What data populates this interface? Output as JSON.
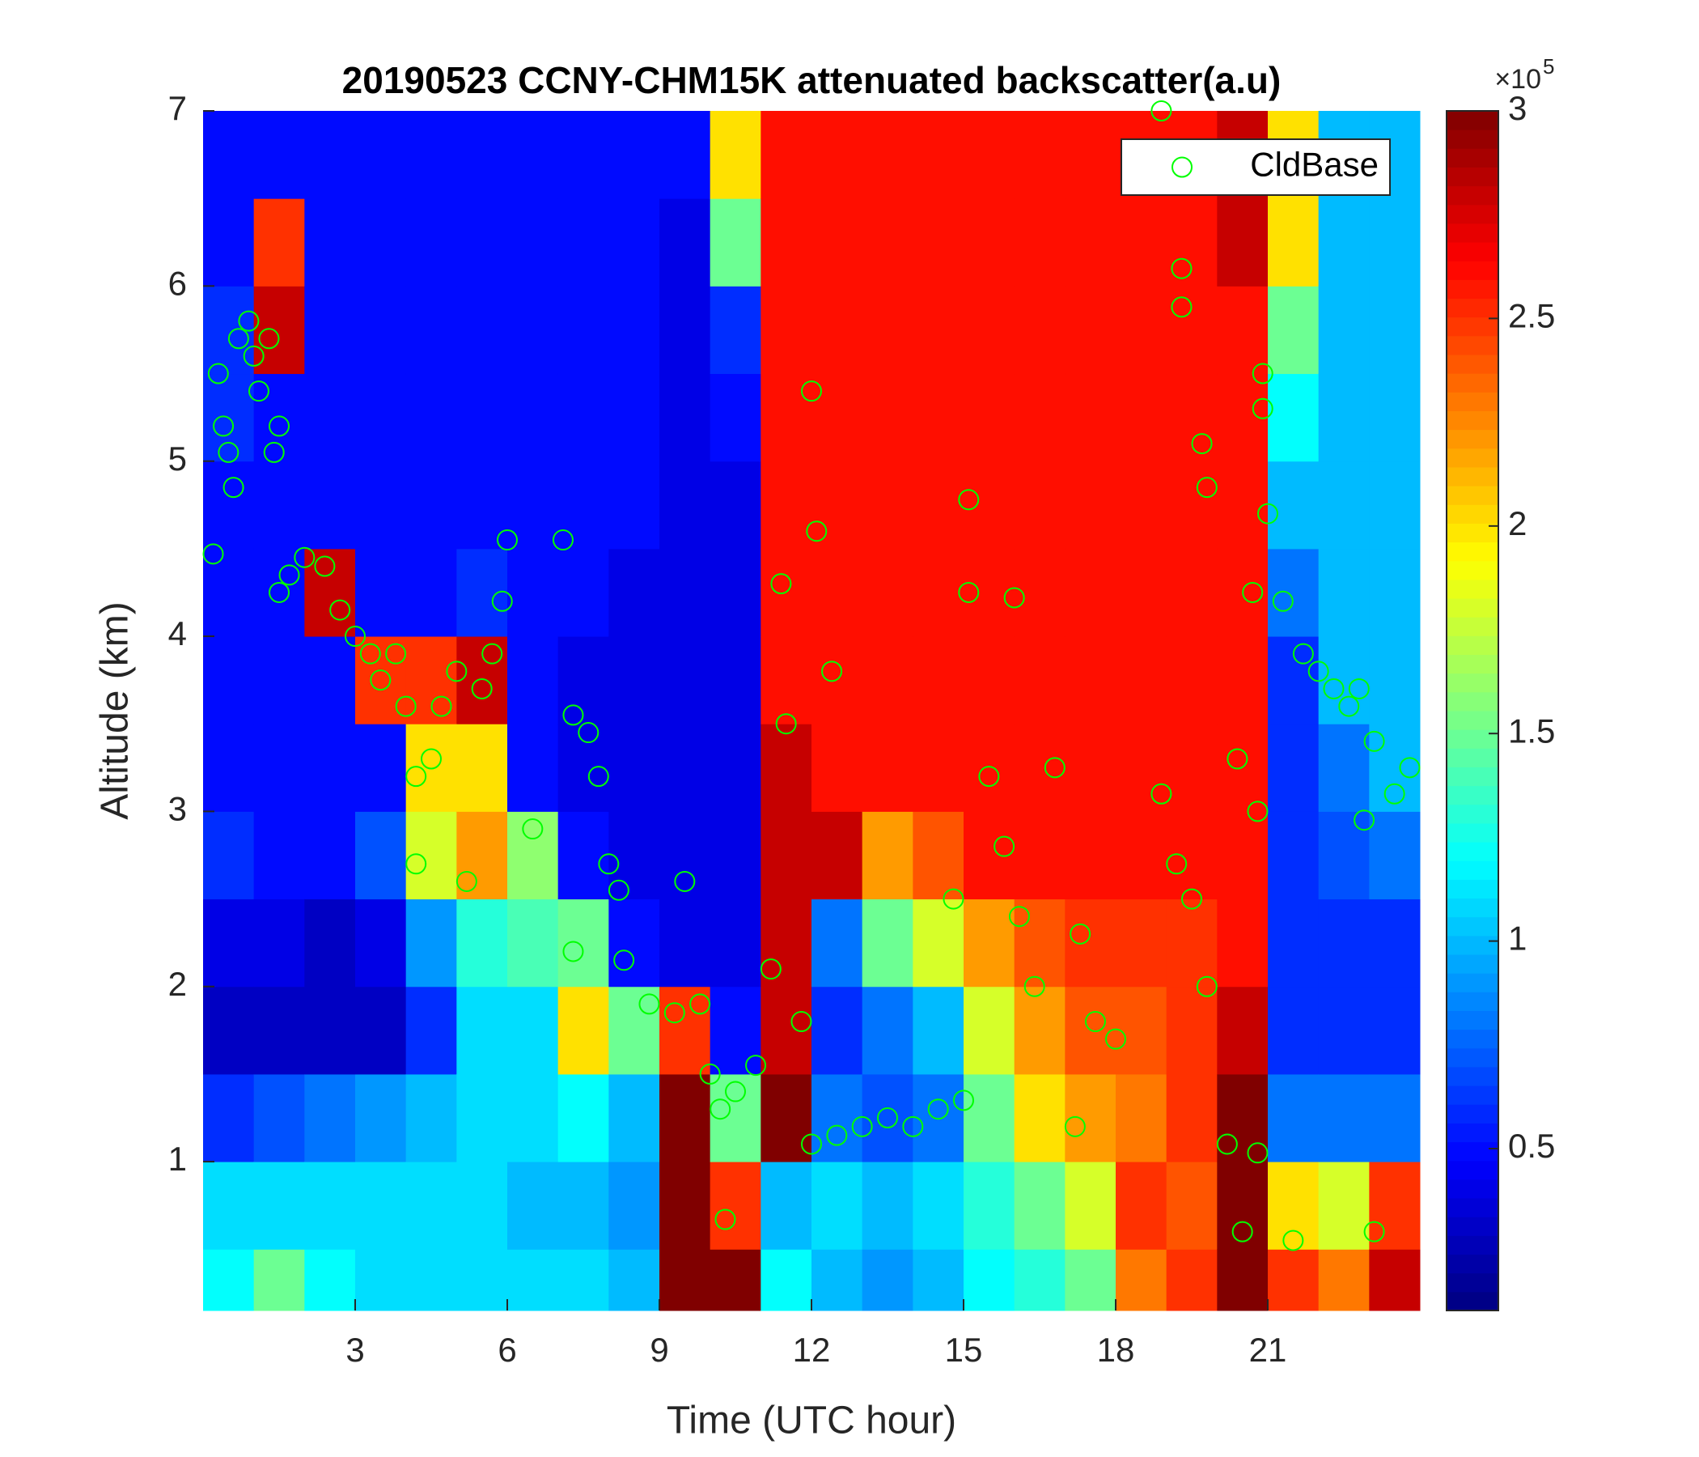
{
  "chart_data": [
    {
      "type": "heatmap",
      "title": "20190523 CCNY-CHM15K attenuated backscatter(a.u)",
      "xlabel": "Time (UTC hour)",
      "ylabel": "Altitude (km)",
      "xlim": [
        0,
        24
      ],
      "ylim": [
        0.15,
        7
      ],
      "xticks": [
        3,
        6,
        9,
        12,
        15,
        18,
        21
      ],
      "yticks": [
        1,
        2,
        3,
        4,
        5,
        6,
        7
      ],
      "colormap": "jet",
      "clim": [
        0.11,
        3
      ],
      "cticks": [
        0.5,
        1,
        1.5,
        2,
        2.5,
        3
      ],
      "colorbar_multiplier": "×10",
      "colorbar_exponent": "5",
      "xbins": [
        0,
        1,
        2,
        3,
        4,
        5,
        6,
        7,
        8,
        9,
        10,
        11,
        12,
        13,
        14,
        15,
        16,
        17,
        18,
        19,
        20,
        21,
        22,
        23,
        24
      ],
      "ybins": [
        0.15,
        0.5,
        1,
        1.5,
        2,
        2.5,
        3,
        3.5,
        4,
        4.5,
        5,
        5.5,
        6,
        6.5,
        7
      ],
      "z": [
        [
          1.2,
          1.1,
          0.6,
          0.3,
          0.4,
          0.6,
          0.5,
          0.5,
          0.5,
          0.5,
          0.6,
          0.6,
          0.5,
          0.5
        ],
        [
          1.5,
          1.1,
          0.7,
          0.3,
          0.4,
          0.5,
          0.5,
          0.5,
          0.5,
          0.5,
          0.5,
          2.8,
          2.5,
          0.5
        ],
        [
          1.2,
          1.1,
          0.8,
          0.3,
          0.3,
          0.5,
          0.5,
          0.5,
          2.8,
          0.5,
          0.5,
          0.5,
          0.5,
          0.5
        ],
        [
          1.1,
          1.1,
          0.9,
          0.3,
          0.4,
          0.7,
          0.5,
          2.5,
          0.5,
          0.5,
          0.5,
          0.5,
          0.5,
          0.5
        ],
        [
          1.1,
          1.1,
          1.0,
          0.6,
          0.9,
          1.8,
          2.0,
          2.5,
          0.5,
          0.5,
          0.5,
          0.5,
          0.5,
          0.5
        ],
        [
          1.1,
          1.1,
          1.1,
          1.1,
          1.3,
          2.2,
          2.0,
          2.8,
          0.6,
          0.5,
          0.5,
          0.5,
          0.5,
          0.5
        ],
        [
          1.1,
          1.0,
          1.1,
          1.1,
          1.4,
          1.6,
          0.5,
          0.5,
          0.5,
          0.5,
          0.5,
          0.5,
          0.5,
          0.5
        ],
        [
          1.1,
          1.0,
          1.2,
          2.0,
          1.5,
          0.5,
          0.4,
          0.4,
          0.5,
          0.5,
          0.5,
          0.5,
          0.5,
          0.5
        ],
        [
          1.0,
          0.9,
          1.0,
          1.5,
          0.5,
          0.4,
          0.4,
          0.4,
          0.4,
          0.5,
          0.5,
          0.5,
          0.5,
          0.5
        ],
        [
          3,
          3,
          3,
          2.5,
          0.4,
          0.4,
          0.4,
          0.4,
          0.4,
          0.4,
          0.4,
          0.4,
          0.4,
          0.5
        ],
        [
          3,
          2.5,
          1.5,
          0.5,
          0.4,
          0.4,
          0.4,
          0.4,
          0.4,
          0.4,
          0.5,
          0.6,
          1.5,
          2.0
        ],
        [
          1.2,
          1.0,
          3,
          2.8,
          2.8,
          2.8,
          2.8,
          2.6,
          2.6,
          2.6,
          2.6,
          2.6,
          2.6,
          2.6
        ],
        [
          1.0,
          1.1,
          0.8,
          0.6,
          0.8,
          2.8,
          2.6,
          2.6,
          2.6,
          2.6,
          2.6,
          2.6,
          2.6,
          2.6
        ],
        [
          0.9,
          1.0,
          0.7,
          0.8,
          1.5,
          2.2,
          2.6,
          2.6,
          2.6,
          2.6,
          2.6,
          2.6,
          2.6,
          2.6
        ],
        [
          1.0,
          1.1,
          0.8,
          1.0,
          1.8,
          2.4,
          2.6,
          2.6,
          2.6,
          2.6,
          2.6,
          2.6,
          2.6,
          2.6
        ],
        [
          1.2,
          1.3,
          1.5,
          1.8,
          2.2,
          2.6,
          2.6,
          2.6,
          2.6,
          2.6,
          2.6,
          2.6,
          2.6,
          2.6
        ],
        [
          1.3,
          1.5,
          2.0,
          2.2,
          2.4,
          2.6,
          2.6,
          2.6,
          2.6,
          2.6,
          2.6,
          2.6,
          2.6,
          2.6
        ],
        [
          1.5,
          1.8,
          2.2,
          2.4,
          2.5,
          2.6,
          2.6,
          2.6,
          2.6,
          2.6,
          2.6,
          2.6,
          2.6,
          2.6
        ],
        [
          2.3,
          2.5,
          2.3,
          2.4,
          2.5,
          2.6,
          2.6,
          2.6,
          2.6,
          2.6,
          2.6,
          2.6,
          2.6,
          2.6
        ],
        [
          2.5,
          2.4,
          2.5,
          2.5,
          2.5,
          2.6,
          2.6,
          2.6,
          2.6,
          2.6,
          2.6,
          2.6,
          2.6,
          2.6
        ],
        [
          3,
          3,
          3,
          2.8,
          2.6,
          2.6,
          2.6,
          2.6,
          2.6,
          2.6,
          2.6,
          2.6,
          2.8,
          2.8
        ],
        [
          2.5,
          2.0,
          0.8,
          0.6,
          0.6,
          0.6,
          0.6,
          0.6,
          0.8,
          1.0,
          1.2,
          1.5,
          2.0,
          2.0
        ],
        [
          2.3,
          1.8,
          0.8,
          0.6,
          0.6,
          0.7,
          0.8,
          1.0,
          1.0,
          1.0,
          1.0,
          1.0,
          1.0,
          1.0
        ],
        [
          2.8,
          2.5,
          0.8,
          0.6,
          0.6,
          0.8,
          1.0,
          1.0,
          1.0,
          1.0,
          1.0,
          1.0,
          1.0,
          1.0
        ]
      ]
    },
    {
      "type": "scatter",
      "xlim": [
        0,
        24
      ],
      "ylim": [
        0.15,
        7
      ],
      "legend": "upper right",
      "series": [
        {
          "name": "CldBase",
          "color": "#00ff00",
          "x": [
            0.2,
            0.3,
            0.4,
            0.5,
            0.6,
            0.7,
            0.9,
            1.0,
            1.1,
            1.3,
            1.4,
            1.5,
            1.5,
            1.7,
            2.0,
            2.4,
            2.7,
            3.0,
            3.3,
            3.5,
            3.8,
            4.0,
            4.2,
            4.2,
            4.5,
            4.7,
            5.0,
            5.2,
            5.5,
            5.7,
            5.9,
            6.0,
            6.5,
            7.1,
            7.3,
            7.6,
            7.8,
            8.0,
            8.2,
            7.3,
            8.3,
            8.8,
            9.3,
            9.5,
            9.8,
            10.0,
            10.2,
            10.5,
            10.9,
            11.2,
            11.4,
            11.5,
            11.8,
            12.0,
            12.0,
            12.1,
            12.4,
            12.5,
            13.0,
            13.5,
            14.0,
            14.5,
            15.0,
            15.1,
            15.1,
            14.8,
            15.5,
            15.8,
            16.0,
            16.1,
            16.4,
            16.8,
            17.2,
            17.3,
            17.6,
            18.0,
            18.9,
            18.9,
            19.2,
            19.3,
            19.3,
            19.5,
            19.7,
            19.8,
            19.8,
            20.2,
            20.4,
            20.5,
            20.7,
            20.9,
            20.9,
            21.0,
            21.3,
            21.5,
            21.7,
            22.0,
            22.3,
            22.6,
            22.8,
            23.1,
            23.1,
            22.9,
            23.5,
            23.8,
            20.8,
            20.8,
            10.3
          ],
          "values": [
            4.47,
            5.5,
            5.2,
            5.05,
            4.85,
            5.7,
            5.8,
            5.6,
            5.4,
            5.7,
            5.05,
            5.2,
            4.25,
            4.35,
            4.45,
            4.4,
            4.15,
            4.0,
            3.9,
            3.75,
            3.9,
            3.6,
            3.2,
            2.7,
            3.3,
            3.6,
            3.8,
            2.6,
            3.7,
            3.9,
            4.2,
            4.55,
            2.9,
            4.55,
            3.55,
            3.45,
            3.2,
            2.7,
            2.55,
            2.2,
            2.15,
            1.9,
            1.85,
            2.6,
            1.9,
            1.5,
            1.3,
            1.4,
            1.55,
            2.1,
            4.3,
            3.5,
            1.8,
            1.1,
            5.4,
            4.6,
            3.8,
            1.15,
            1.2,
            1.25,
            1.2,
            1.3,
            1.35,
            4.78,
            4.25,
            2.5,
            3.2,
            2.8,
            4.22,
            2.4,
            2.0,
            3.25,
            1.2,
            2.3,
            1.8,
            1.7,
            7.0,
            3.1,
            2.7,
            6.1,
            5.88,
            2.5,
            5.1,
            4.85,
            2.0,
            1.1,
            3.3,
            0.6,
            4.25,
            5.5,
            5.3,
            4.7,
            4.2,
            0.55,
            3.9,
            3.8,
            3.7,
            3.6,
            3.7,
            3.4,
            0.6,
            2.95,
            3.1,
            3.25,
            3.0,
            1.05,
            0.67
          ]
        }
      ]
    }
  ]
}
